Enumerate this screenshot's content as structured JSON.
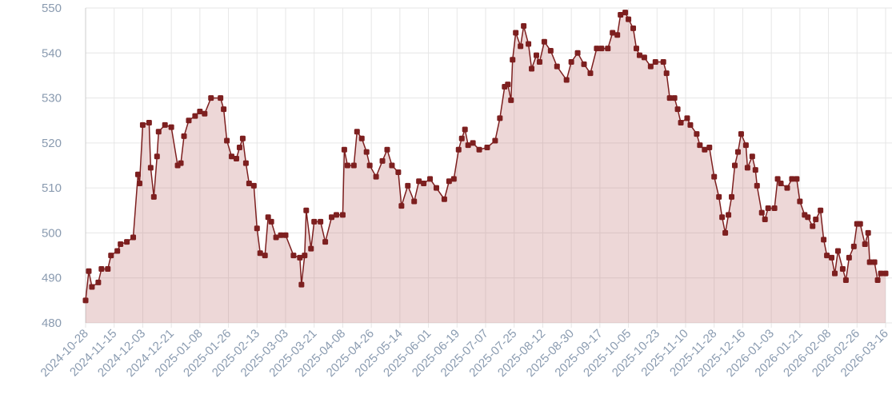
{
  "chart_data": {
    "type": "line",
    "area": true,
    "color": "#7d1f1f",
    "fill": "rgba(190,110,110,0.28)",
    "grid": true,
    "xlim": [
      "2024-10-28",
      "2026-03-16"
    ],
    "xticks": [
      "2024-10-28",
      "2024-11-15",
      "2024-12-03",
      "2024-12-21",
      "2025-01-08",
      "2025-01-26",
      "2025-02-13",
      "2025-03-03",
      "2025-03-21",
      "2025-04-08",
      "2025-04-26",
      "2025-05-14",
      "2025-06-01",
      "2025-06-19",
      "2025-07-07",
      "2025-07-25",
      "2025-08-12",
      "2025-08-30",
      "2025-09-17",
      "2025-10-05",
      "2025-10-23",
      "2025-11-10",
      "2025-11-28",
      "2025-12-16",
      "2026-01-03",
      "2026-01-21",
      "2026-02-08",
      "2026-02-26",
      "2026-03-16"
    ],
    "ylim": [
      480,
      550
    ],
    "yticks": [
      480,
      490,
      500,
      510,
      520,
      530,
      540,
      550
    ],
    "x": [
      "2024-10-28",
      "2024-10-30",
      "2024-11-01",
      "2024-11-05",
      "2024-11-07",
      "2024-11-11",
      "2024-11-13",
      "2024-11-17",
      "2024-11-19",
      "2024-11-23",
      "2024-11-27",
      "2024-11-30",
      "2024-12-01",
      "2024-12-03",
      "2024-12-07",
      "2024-12-08",
      "2024-12-10",
      "2024-12-12",
      "2024-12-13",
      "2024-12-17",
      "2024-12-21",
      "2024-12-25",
      "2024-12-27",
      "2024-12-29",
      "2025-01-01",
      "2025-01-05",
      "2025-01-08",
      "2025-01-11",
      "2025-01-15",
      "2025-01-21",
      "2025-01-23",
      "2025-01-25",
      "2025-01-28",
      "2025-01-31",
      "2025-02-02",
      "2025-02-04",
      "2025-02-06",
      "2025-02-08",
      "2025-02-11",
      "2025-02-13",
      "2025-02-15",
      "2025-02-18",
      "2025-02-20",
      "2025-02-22",
      "2025-02-25",
      "2025-02-28",
      "2025-03-03",
      "2025-03-08",
      "2025-03-12",
      "2025-03-13",
      "2025-03-15",
      "2025-03-16",
      "2025-03-19",
      "2025-03-21",
      "2025-03-25",
      "2025-03-28",
      "2025-04-01",
      "2025-04-04",
      "2025-04-08",
      "2025-04-09",
      "2025-04-11",
      "2025-04-15",
      "2025-04-17",
      "2025-04-20",
      "2025-04-23",
      "2025-04-25",
      "2025-04-29",
      "2025-05-03",
      "2025-05-06",
      "2025-05-09",
      "2025-05-13",
      "2025-05-15",
      "2025-05-19",
      "2025-05-23",
      "2025-05-26",
      "2025-05-29",
      "2025-06-02",
      "2025-06-06",
      "2025-06-11",
      "2025-06-14",
      "2025-06-17",
      "2025-06-20",
      "2025-06-22",
      "2025-06-24",
      "2025-06-26",
      "2025-06-29",
      "2025-07-03",
      "2025-07-08",
      "2025-07-13",
      "2025-07-16",
      "2025-07-19",
      "2025-07-21",
      "2025-07-23",
      "2025-07-24",
      "2025-07-26",
      "2025-07-29",
      "2025-07-31",
      "2025-08-03",
      "2025-08-05",
      "2025-08-08",
      "2025-08-10",
      "2025-08-13",
      "2025-08-17",
      "2025-08-21",
      "2025-08-27",
      "2025-08-30",
      "2025-09-03",
      "2025-09-07",
      "2025-09-11",
      "2025-09-15",
      "2025-09-18",
      "2025-09-22",
      "2025-09-25",
      "2025-09-28",
      "2025-09-30",
      "2025-10-03",
      "2025-10-05",
      "2025-10-08",
      "2025-10-10",
      "2025-10-12",
      "2025-10-15",
      "2025-10-19",
      "2025-10-22",
      "2025-10-27",
      "2025-10-29",
      "2025-10-31",
      "2025-11-03",
      "2025-11-05",
      "2025-11-07",
      "2025-11-11",
      "2025-11-13",
      "2025-11-17",
      "2025-11-19",
      "2025-11-22",
      "2025-11-25",
      "2025-11-28",
      "2025-12-01",
      "2025-12-03",
      "2025-12-05",
      "2025-12-07",
      "2025-12-09",
      "2025-12-11",
      "2025-12-13",
      "2025-12-15",
      "2025-12-18",
      "2025-12-19",
      "2025-12-22",
      "2025-12-24",
      "2025-12-25",
      "2025-12-28",
      "2025-12-30",
      "2026-01-01",
      "2026-01-05",
      "2026-01-07",
      "2026-01-09",
      "2026-01-13",
      "2026-01-16",
      "2026-01-19",
      "2026-01-21",
      "2026-01-24",
      "2026-01-26",
      "2026-01-29",
      "2026-01-31",
      "2026-02-03",
      "2026-02-05",
      "2026-02-07",
      "2026-02-10",
      "2026-02-12",
      "2026-02-14",
      "2026-02-17",
      "2026-02-19",
      "2026-02-21",
      "2026-02-24",
      "2026-02-26",
      "2026-02-28",
      "2026-03-03",
      "2026-03-05",
      "2026-03-06",
      "2026-03-09",
      "2026-03-11",
      "2026-03-13",
      "2026-03-16"
    ],
    "values": [
      485,
      491.5,
      488,
      489,
      492,
      492,
      495,
      496,
      497.5,
      498,
      499,
      513,
      511,
      524,
      524.5,
      514.5,
      508,
      517,
      522.5,
      524,
      523.5,
      515,
      515.5,
      521.5,
      525,
      526,
      527,
      526.5,
      530,
      530,
      527.5,
      520.5,
      517,
      516.5,
      519,
      521,
      515.5,
      511,
      510.5,
      501,
      495.5,
      495,
      503.5,
      502.5,
      499,
      499.5,
      499.5,
      495,
      494.5,
      488.5,
      495,
      505,
      496.5,
      502.5,
      502.5,
      498,
      503.5,
      504,
      504,
      518.5,
      515,
      515,
      522.5,
      521,
      518,
      515,
      512.5,
      516,
      518.5,
      515,
      513.5,
      506,
      510.5,
      507,
      511.5,
      511,
      512,
      510,
      507.5,
      511.5,
      512,
      518.5,
      521,
      523,
      519.5,
      520,
      518.5,
      519,
      520.5,
      525.5,
      532.5,
      533,
      529.5,
      538.5,
      544.5,
      541.5,
      546,
      542,
      536.5,
      539.5,
      538,
      542.5,
      540.5,
      537,
      534,
      538,
      540,
      537.5,
      535.5,
      541,
      541,
      541,
      544.5,
      544,
      548.5,
      549,
      547.5,
      545.5,
      541,
      539.5,
      539,
      537,
      538,
      538,
      535.5,
      530,
      530,
      527.5,
      524.5,
      525.5,
      524,
      522,
      519.5,
      518.5,
      519,
      512.5,
      508,
      503.5,
      500,
      504,
      508,
      515,
      518,
      522,
      519.5,
      514.5,
      517,
      514,
      510.5,
      504.5,
      503,
      505.5,
      505.5,
      512,
      511,
      510,
      512,
      512,
      507,
      504,
      503.5,
      501.5,
      503,
      505,
      498.5,
      495,
      494.5,
      491,
      496,
      492,
      489.5,
      494.5,
      497,
      502,
      502,
      497.5,
      500,
      493.5,
      493.5,
      489.5,
      491,
      491
    ]
  }
}
